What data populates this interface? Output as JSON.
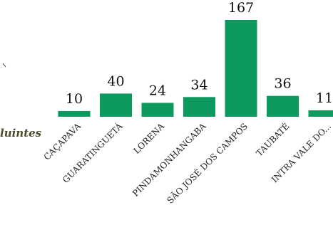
{
  "chart_data": {
    "type": "bar",
    "categories": [
      "CAÇAPAVA",
      "GUARATINGUETÁ",
      "LORENA",
      "PINDAMONHANGABA",
      "SÃO JOSÉ DOS CAMPOS",
      "TAUBATÉ",
      "INTRA VALE DO..."
    ],
    "values": [
      10,
      40,
      24,
      34,
      167,
      36,
      11
    ],
    "value_labels": [
      "10",
      "40",
      "24",
      "34",
      "167",
      "36",
      "11"
    ],
    "ylim": [
      0,
      167
    ],
    "side_label": "luintes",
    "bar_color": "#0e9a5e",
    "grid": false,
    "legend": "none"
  }
}
